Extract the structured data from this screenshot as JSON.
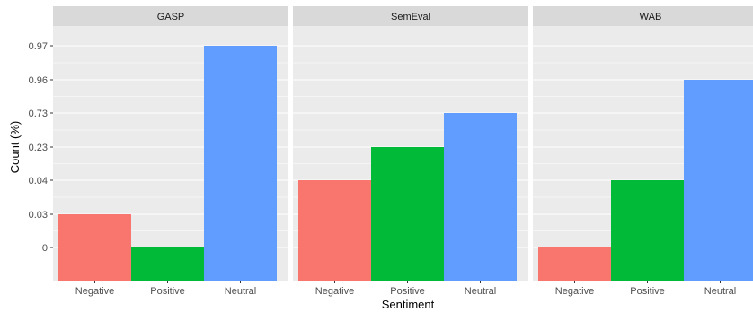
{
  "chart_data": {
    "type": "bar",
    "facet_by": "dataset",
    "xlabel": "Sentiment",
    "ylabel": "Count (%)",
    "categories": [
      "Negative",
      "Positive",
      "Neutral"
    ],
    "y_ticks": [
      "0",
      "0.03",
      "0.04",
      "0.23",
      "0.73",
      "0.96",
      "0.97"
    ],
    "grid": true,
    "legend": "none",
    "colors": {
      "Negative": "#F8766D",
      "Positive": "#00BA38",
      "Neutral": "#619CFF",
      "panel_background": "#EBEBEB",
      "strip_background": "#D9D9D9",
      "gridline": "#FFFFFF"
    },
    "facets": [
      {
        "name": "GASP",
        "values": [
          "0.03",
          "0",
          "0.97"
        ]
      },
      {
        "name": "SemEval",
        "values": [
          "0.04",
          "0.23",
          "0.73"
        ]
      },
      {
        "name": "WAB",
        "values": [
          "0",
          "0.04",
          "0.96"
        ]
      }
    ]
  }
}
